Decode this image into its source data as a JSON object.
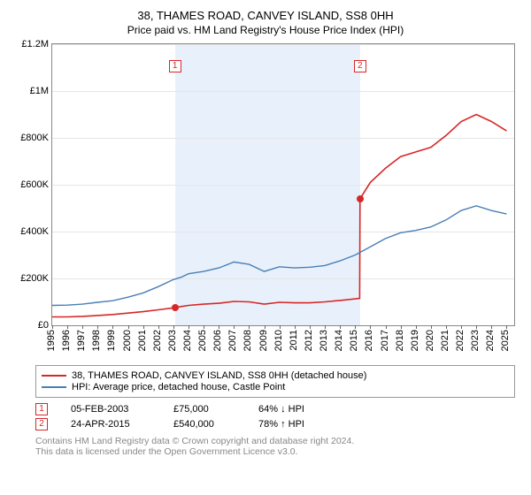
{
  "title": "38, THAMES ROAD, CANVEY ISLAND, SS8 0HH",
  "subtitle": "Price paid vs. HM Land Registry's House Price Index (HPI)",
  "chart": {
    "type": "line",
    "background_color": "#ffffff",
    "grid_color": "#e5e5e5",
    "border_color": "#888888",
    "shaded_color": "#e8f1fb",
    "y_axis": {
      "min": 0,
      "max": 1200000,
      "ticks": [
        0,
        200000,
        400000,
        600000,
        800000,
        1000000,
        1200000
      ],
      "labels": [
        "£0",
        "£200K",
        "£400K",
        "£600K",
        "£800K",
        "£1M",
        "£1.2M"
      ],
      "fontsize": 11
    },
    "x_axis": {
      "min": 1995,
      "max": 2025.5,
      "ticks": [
        1995,
        1996,
        1997,
        1998,
        1999,
        2000,
        2001,
        2002,
        2003,
        2004,
        2005,
        2006,
        2007,
        2008,
        2009,
        2010,
        2011,
        2012,
        2013,
        2014,
        2015,
        2016,
        2017,
        2018,
        2019,
        2020,
        2021,
        2022,
        2023,
        2024,
        2025
      ],
      "fontsize": 11
    },
    "shaded_range": {
      "start": 2003.1,
      "end": 2015.32
    },
    "series": [
      {
        "name": "38, THAMES ROAD, CANVEY ISLAND, SS8 0HH (detached house)",
        "color": "#d62728",
        "line_width": 1.6,
        "points": [
          [
            1995,
            36000
          ],
          [
            1996,
            36000
          ],
          [
            1997,
            38000
          ],
          [
            1998,
            42000
          ],
          [
            1999,
            46000
          ],
          [
            2000,
            52000
          ],
          [
            2001,
            58000
          ],
          [
            2002,
            66000
          ],
          [
            2003.1,
            75000
          ],
          [
            2003.5,
            80000
          ],
          [
            2004,
            85000
          ],
          [
            2005,
            90000
          ],
          [
            2006,
            94000
          ],
          [
            2007,
            102000
          ],
          [
            2008,
            100000
          ],
          [
            2009,
            90000
          ],
          [
            2010,
            98000
          ],
          [
            2011,
            96000
          ],
          [
            2012,
            96000
          ],
          [
            2013,
            100000
          ],
          [
            2014,
            106000
          ],
          [
            2015.3,
            115000
          ],
          [
            2015.32,
            540000
          ],
          [
            2016,
            610000
          ],
          [
            2017,
            670000
          ],
          [
            2018,
            720000
          ],
          [
            2019,
            740000
          ],
          [
            2020,
            760000
          ],
          [
            2021,
            810000
          ],
          [
            2022,
            870000
          ],
          [
            2023,
            900000
          ],
          [
            2024,
            870000
          ],
          [
            2025,
            830000
          ]
        ]
      },
      {
        "name": "HPI: Average price, detached house, Castle Point",
        "color": "#4a7fb5",
        "line_width": 1.4,
        "points": [
          [
            1995,
            85000
          ],
          [
            1996,
            86000
          ],
          [
            1997,
            90000
          ],
          [
            1998,
            98000
          ],
          [
            1999,
            105000
          ],
          [
            2000,
            120000
          ],
          [
            2001,
            138000
          ],
          [
            2002,
            165000
          ],
          [
            2003,
            195000
          ],
          [
            2003.5,
            205000
          ],
          [
            2004,
            220000
          ],
          [
            2005,
            230000
          ],
          [
            2006,
            245000
          ],
          [
            2007,
            270000
          ],
          [
            2008,
            260000
          ],
          [
            2009,
            230000
          ],
          [
            2010,
            250000
          ],
          [
            2011,
            245000
          ],
          [
            2012,
            248000
          ],
          [
            2013,
            255000
          ],
          [
            2014,
            275000
          ],
          [
            2015,
            300000
          ],
          [
            2016,
            335000
          ],
          [
            2017,
            370000
          ],
          [
            2018,
            395000
          ],
          [
            2019,
            405000
          ],
          [
            2020,
            420000
          ],
          [
            2021,
            450000
          ],
          [
            2022,
            490000
          ],
          [
            2023,
            510000
          ],
          [
            2024,
            490000
          ],
          [
            2025,
            475000
          ]
        ]
      }
    ],
    "markers": [
      {
        "label": "1",
        "x": 2003.1,
        "y": 75000
      },
      {
        "label": "2",
        "x": 2015.32,
        "y": 540000
      }
    ]
  },
  "legend": {
    "items": [
      {
        "color": "#d62728",
        "label": "38, THAMES ROAD, CANVEY ISLAND, SS8 0HH (detached house)"
      },
      {
        "color": "#4a7fb5",
        "label": "HPI: Average price, detached house, Castle Point"
      }
    ]
  },
  "sales": [
    {
      "idx": "1",
      "date": "05-FEB-2003",
      "price": "£75,000",
      "delta": "64% ↓ HPI"
    },
    {
      "idx": "2",
      "date": "24-APR-2015",
      "price": "£540,000",
      "delta": "78% ↑ HPI"
    }
  ],
  "footnote_line1": "Contains HM Land Registry data © Crown copyright and database right 2024.",
  "footnote_line2": "This data is licensed under the Open Government Licence v3.0."
}
